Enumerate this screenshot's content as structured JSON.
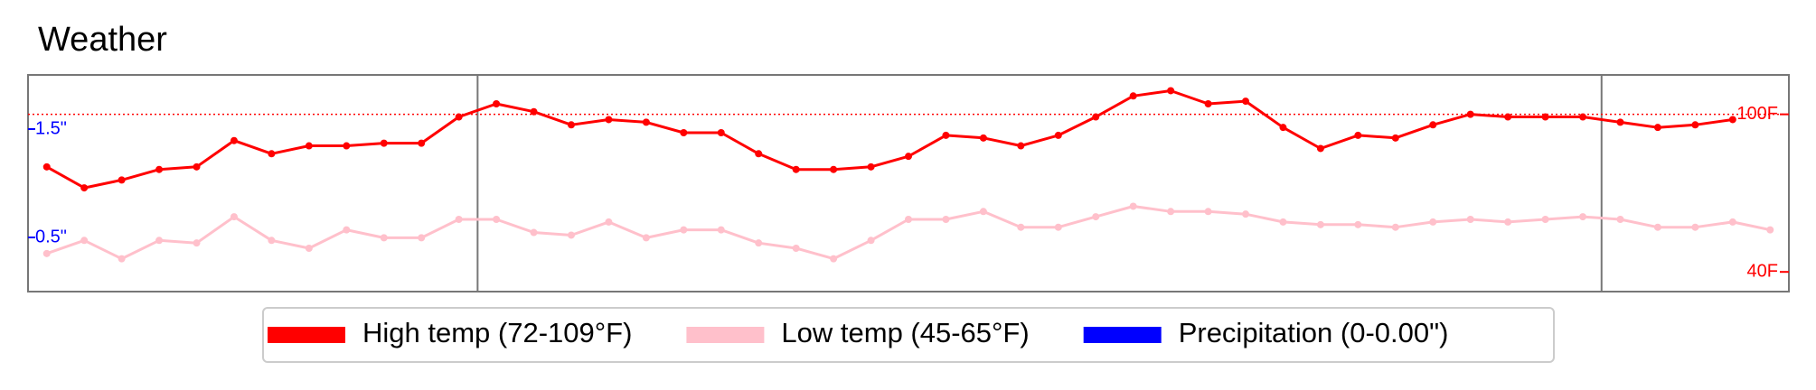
{
  "chart_data": {
    "type": "line",
    "title": "Weather",
    "x": [
      0,
      1,
      2,
      3,
      4,
      5,
      6,
      7,
      8,
      9,
      10,
      11,
      12,
      13,
      14,
      15,
      16,
      17,
      18,
      19,
      20,
      21,
      22,
      23,
      24,
      25,
      26,
      27,
      28,
      29,
      30,
      31,
      32,
      33,
      34,
      35,
      36,
      37,
      38,
      39,
      40,
      41,
      42,
      43,
      44,
      45,
      46
    ],
    "xlim": [
      -0.5,
      46.5
    ],
    "series": [
      {
        "name": "High temp (72-109°F)",
        "color": "#ff0000",
        "values": [
          80,
          72,
          75,
          79,
          80,
          90,
          85,
          88,
          88,
          89,
          89,
          99,
          104,
          101,
          96,
          98,
          97,
          93,
          93,
          85,
          79,
          79,
          80,
          84,
          92,
          91,
          88,
          92,
          99,
          107,
          109,
          104,
          105,
          95,
          87,
          92,
          91,
          96,
          100,
          99,
          99,
          99,
          97,
          95,
          96,
          98,
          null
        ]
      },
      {
        "name": "Low temp (45-65°F)",
        "color": "#ffc0cb",
        "values": [
          47,
          52,
          45,
          52,
          51,
          61,
          52,
          49,
          56,
          53,
          53,
          60,
          60,
          55,
          54,
          59,
          53,
          56,
          56,
          51,
          49,
          45,
          52,
          60,
          60,
          63,
          57,
          57,
          61,
          65,
          63,
          63,
          62,
          59,
          58,
          58,
          57,
          59,
          60,
          59,
          60,
          61,
          60,
          57,
          57,
          59,
          56
        ]
      },
      {
        "name": "Precipitation (0-0.00\")",
        "color": "#0000ff",
        "axis": "y2",
        "values": [
          0,
          0,
          0,
          0,
          0,
          0,
          0,
          0,
          0,
          0,
          0,
          0,
          0,
          0,
          0,
          0,
          0,
          0,
          0,
          0,
          0,
          0,
          0,
          0,
          0,
          0,
          0,
          0,
          0,
          0,
          0,
          0,
          0,
          0,
          0,
          0,
          0,
          0,
          0,
          0,
          0,
          0,
          0,
          0,
          0,
          0,
          0
        ]
      }
    ],
    "ylim": [
      32.5,
      115
    ],
    "yticks": [
      {
        "value": 40,
        "label": "40F"
      },
      {
        "value": 100,
        "label": "100F"
      }
    ],
    "y2lim": [
      0,
      2
    ],
    "y2ticks": [
      {
        "value": 0.5,
        "label": "0.5\""
      },
      {
        "value": 1.5,
        "label": "1.5\""
      }
    ],
    "reference_line": 100,
    "month_separators": [
      11.5,
      41.5
    ]
  }
}
